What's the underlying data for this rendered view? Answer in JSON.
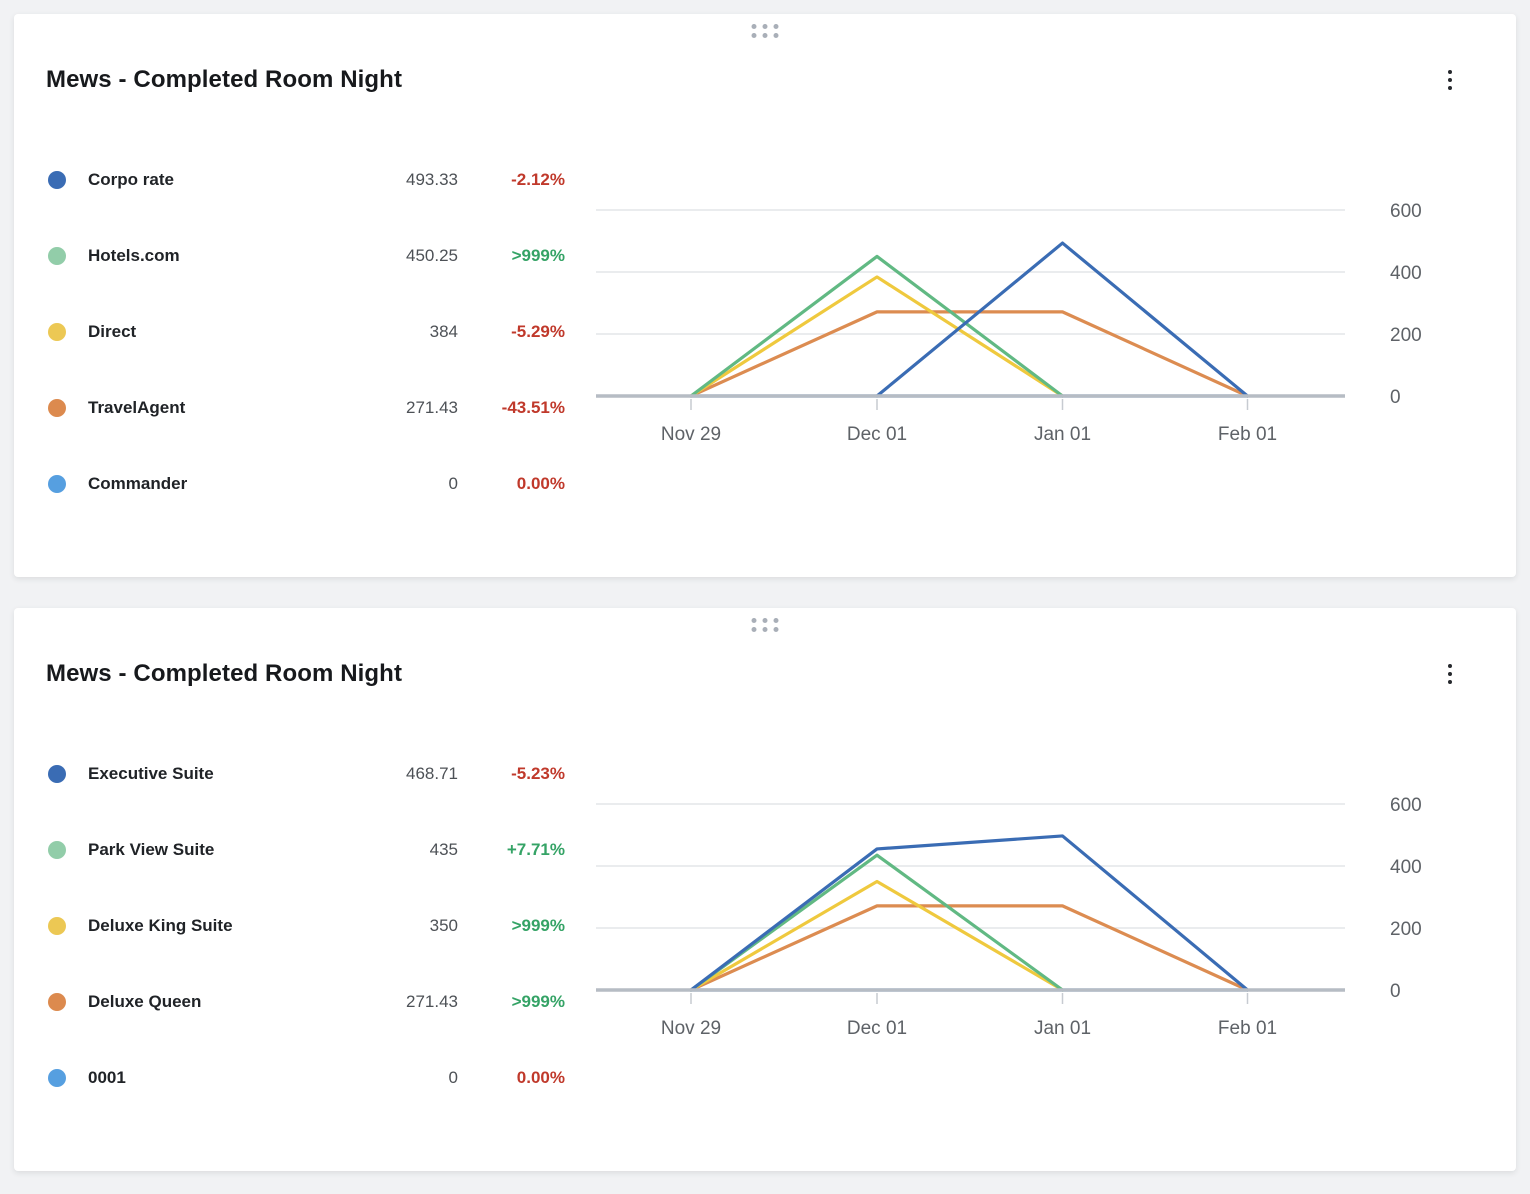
{
  "colors": {
    "positive": "#35a366",
    "negative": "#c0392b"
  },
  "cards": [
    {
      "title": "Mews - Completed Room Night",
      "menu_icon": "kebab-menu",
      "drag_icon": "drag-dots",
      "legend": [
        {
          "name": "Corpo rate",
          "value": "493.33",
          "change": "-2.12%",
          "trend": "down",
          "color": "#3a6cb4"
        },
        {
          "name": "Hotels.com",
          "value": "450.25",
          "change": ">999%",
          "trend": "up",
          "color": "#92cda9"
        },
        {
          "name": "Direct",
          "value": "384",
          "change": "-5.29%",
          "trend": "down",
          "color": "#ecc854"
        },
        {
          "name": "TravelAgent",
          "value": "271.43",
          "change": "-43.51%",
          "trend": "down",
          "color": "#dc8a4e"
        },
        {
          "name": "Commander",
          "value": "0",
          "change": "0.00%",
          "trend": "down",
          "color": "#569fe0"
        }
      ],
      "chart_data": {
        "type": "line",
        "x": [
          "Nov 29",
          "Dec 01",
          "Jan 01",
          "Feb 01"
        ],
        "ylim": [
          0,
          600
        ],
        "yticks": [
          0,
          200,
          400,
          600
        ],
        "legend_position": "left",
        "grid": true,
        "series": [
          {
            "name": "Corpo rate",
            "color": "#3a6cb4",
            "values": [
              null,
              0,
              493.33,
              0
            ]
          },
          {
            "name": "Hotels.com",
            "color": "#61b983",
            "values": [
              0,
              450.25,
              0,
              null
            ]
          },
          {
            "name": "Direct",
            "color": "#efc93e",
            "values": [
              0,
              384,
              0,
              null
            ]
          },
          {
            "name": "TravelAgent",
            "color": "#dc8c51",
            "values": [
              0,
              271.43,
              271.43,
              0
            ]
          },
          {
            "name": "Commander",
            "color": "#569fe0",
            "values": [
              0,
              0,
              0,
              0
            ]
          }
        ]
      }
    },
    {
      "title": "Mews - Completed Room Night",
      "menu_icon": "kebab-menu",
      "drag_icon": "drag-dots",
      "legend": [
        {
          "name": "Executive Suite",
          "value": "468.71",
          "change": "-5.23%",
          "trend": "down",
          "color": "#3a6cb4"
        },
        {
          "name": "Park View Suite",
          "value": "435",
          "change": "+7.71%",
          "trend": "up",
          "color": "#92cda9"
        },
        {
          "name": "Deluxe King Suite",
          "value": "350",
          "change": ">999%",
          "trend": "up",
          "color": "#ecc854"
        },
        {
          "name": "Deluxe Queen",
          "value": "271.43",
          "change": ">999%",
          "trend": "up",
          "color": "#dc8a4e"
        },
        {
          "name": "0001",
          "value": "0",
          "change": "0.00%",
          "trend": "down",
          "color": "#569fe0"
        }
      ],
      "chart_data": {
        "type": "line",
        "x": [
          "Nov 29",
          "Dec 01",
          "Jan 01",
          "Feb 01"
        ],
        "ylim": [
          0,
          600
        ],
        "yticks": [
          0,
          200,
          400,
          600
        ],
        "legend_position": "left",
        "grid": true,
        "series": [
          {
            "name": "Executive Suite",
            "color": "#3a6cb4",
            "values": [
              0,
              455,
              497,
              0
            ]
          },
          {
            "name": "Park View Suite",
            "color": "#61b983",
            "values": [
              0,
              435,
              0,
              null
            ]
          },
          {
            "name": "Deluxe King Suite",
            "color": "#efc93e",
            "values": [
              0,
              350,
              0,
              null
            ]
          },
          {
            "name": "Deluxe Queen",
            "color": "#dc8c51",
            "values": [
              0,
              271.43,
              271.43,
              0
            ]
          },
          {
            "name": "0001",
            "color": "#569fe0",
            "values": [
              0,
              0,
              0,
              0
            ]
          }
        ]
      }
    }
  ]
}
